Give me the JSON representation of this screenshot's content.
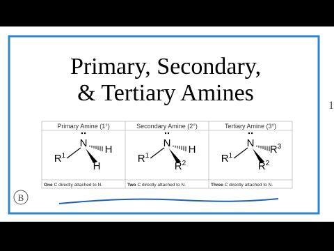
{
  "title_lines": [
    "Primary, Secondary,",
    "& Tertiary Amines"
  ],
  "table": {
    "columns": [
      {
        "header": "Primary Amine (1°)",
        "atoms": [
          {
            "label": "N"
          },
          {
            "label": "R",
            "sup": "1"
          },
          {
            "label": "H"
          },
          {
            "label": "H"
          }
        ],
        "footer": {
          "bold": "One",
          "rest": "C directly attached to N."
        }
      },
      {
        "header": "Secondary Amine (2°)",
        "atoms": [
          {
            "label": "N"
          },
          {
            "label": "R",
            "sup": "1"
          },
          {
            "label": "H"
          },
          {
            "label": "R",
            "sup": "2"
          }
        ],
        "footer": {
          "bold": "Two",
          "rest": "C directly attached to N."
        }
      },
      {
        "header": "Tertiary Amine (3°)",
        "atoms": [
          {
            "label": "N"
          },
          {
            "label": "R",
            "sup": "1"
          },
          {
            "label": "R",
            "sup": "3"
          },
          {
            "label": "R",
            "sup": "2"
          }
        ],
        "footer": {
          "bold": "Three",
          "rest": "C directly attached to N."
        }
      }
    ]
  },
  "logo": "B",
  "side_text": "1"
}
